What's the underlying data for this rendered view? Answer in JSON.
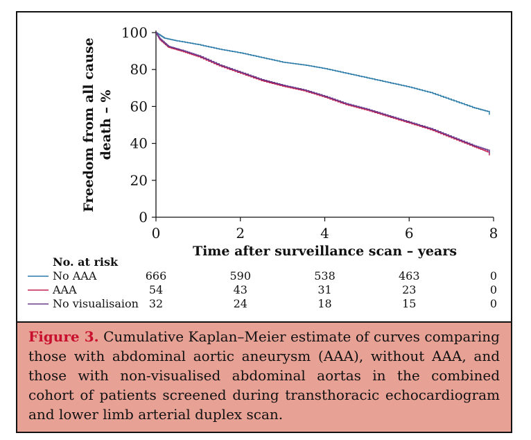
{
  "chart_data": {
    "type": "line",
    "title": "",
    "xlabel": "Time after surveillance scan – years",
    "ylabel_line1": "Freedom from all cause",
    "ylabel_line2": "death – %",
    "xlim": [
      0,
      8
    ],
    "ylim": [
      0,
      100
    ],
    "xticks": [
      "0",
      "2",
      "4",
      "6",
      "8"
    ],
    "yticks": [
      "0",
      "20",
      "40",
      "60",
      "80",
      "100"
    ],
    "grid": false,
    "series": [
      {
        "name": "No AAA",
        "color": "#2a7aa8",
        "x": [
          0,
          0.2,
          0.5,
          1,
          1.5,
          2,
          2.5,
          3,
          3.5,
          4,
          4.5,
          5,
          5.5,
          6,
          6.5,
          7,
          7.5,
          7.9
        ],
        "y": [
          100,
          97,
          95.5,
          93.5,
          91,
          89,
          86.5,
          84,
          82.5,
          80.5,
          78,
          75.5,
          73,
          70.5,
          67.5,
          63.5,
          59.5,
          57
        ]
      },
      {
        "name": "AAA",
        "color": "#c42050",
        "x": [
          0,
          0.1,
          0.3,
          0.6,
          1,
          1.5,
          2,
          2.5,
          3,
          3.5,
          4,
          4.5,
          5,
          5.5,
          6,
          6.5,
          7,
          7.5,
          7.9
        ],
        "y": [
          100,
          96,
          92,
          90,
          87,
          82,
          78,
          74,
          71,
          68.5,
          65,
          61,
          58,
          54.5,
          51,
          47.5,
          43,
          38.5,
          35
        ]
      },
      {
        "name": "No visualisaion",
        "color": "#6a3a8c",
        "x": [
          0,
          0.1,
          0.3,
          0.6,
          1,
          1.5,
          2,
          2.5,
          3,
          3.5,
          4,
          4.5,
          5,
          5.5,
          6,
          6.5,
          7,
          7.5,
          7.9
        ],
        "y": [
          100,
          96.5,
          92.5,
          90.5,
          87.5,
          82.5,
          78.5,
          74.5,
          71.5,
          69,
          65.5,
          61.5,
          58.5,
          55,
          51.5,
          48,
          43.5,
          39,
          36
        ]
      }
    ],
    "risk_table": {
      "title": "No. at risk",
      "times": [
        0,
        2,
        4,
        6,
        8
      ],
      "rows": [
        {
          "label": "No AAA",
          "color": "#2a7aa8",
          "values": [
            "666",
            "590",
            "538",
            "463",
            "0"
          ]
        },
        {
          "label": "AAA",
          "color": "#c42050",
          "values": [
            "54",
            "43",
            "31",
            "23",
            "0"
          ]
        },
        {
          "label": "No visualisaion",
          "color": "#6a3a8c",
          "values": [
            "32",
            "24",
            "18",
            "15",
            "0"
          ]
        }
      ]
    }
  },
  "caption": {
    "label": "Figure 3.",
    "text": " Cumulative Kaplan–Meier estimate of curves comparing those with abdominal aortic aneurysm (AAA), without AAA, and those with non-visualised abdominal aortas in the combined cohort of patients screened during transthoracic echocardiogram and lower limb arterial duplex scan."
  }
}
